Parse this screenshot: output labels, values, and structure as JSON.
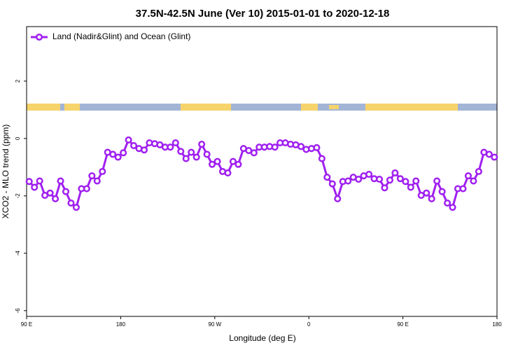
{
  "chart_data": {
    "type": "line",
    "title": "37.5N-42.5N June (Ver 10)   2015-01-01 to 2020-12-18",
    "x_label": "Longitude (deg E)",
    "y_label": "XCO2 - MLO trend (ppm)",
    "xlim": [
      90,
      540
    ],
    "ylim": [
      -6.2,
      3.9
    ],
    "xticks": [
      {
        "value": 90,
        "label": "90 E"
      },
      {
        "value": 180,
        "label": "180"
      },
      {
        "value": 270,
        "label": "90 W"
      },
      {
        "value": 360,
        "label": "0"
      },
      {
        "value": 450,
        "label": "90 E"
      },
      {
        "value": 540,
        "label": "180"
      }
    ],
    "yticks": [
      -6,
      -4,
      -2,
      0,
      2
    ],
    "legend": "top-left",
    "x": [
      92.5,
      97.5,
      102.5,
      107.5,
      112.5,
      117.5,
      122.5,
      127.5,
      132.5,
      137.5,
      142.5,
      147.5,
      152.5,
      157.5,
      162.5,
      167.5,
      172.5,
      177.5,
      182.5,
      187.5,
      192.5,
      197.5,
      202.5,
      207.5,
      212.5,
      217.5,
      222.5,
      227.5,
      232.5,
      237.5,
      242.5,
      247.5,
      252.5,
      257.5,
      262.5,
      267.5,
      272.5,
      277.5,
      282.5,
      287.5,
      292.5,
      297.5,
      302.5,
      307.5,
      312.5,
      317.5,
      322.5,
      327.5,
      332.5,
      337.5,
      342.5,
      347.5,
      352.5,
      357.5,
      362.5,
      367.5,
      372.5,
      377.5,
      382.5,
      387.5,
      392.5,
      397.5,
      402.5,
      407.5,
      412.5,
      417.5,
      422.5,
      427.5,
      432.5,
      437.5,
      442.5,
      447.5,
      452.5,
      457.5,
      462.5,
      467.5,
      472.5,
      477.5,
      482.5,
      487.5,
      492.5,
      497.5,
      502.5,
      507.5,
      512.5,
      517.5,
      522.5,
      527.5,
      532.5,
      537.5
    ],
    "series": [
      {
        "name": "Land (Nadir&Glint) and Ocean (Glint)",
        "color": "#a020f0",
        "values": [
          -1.5,
          -1.7,
          -1.48,
          -1.98,
          -1.9,
          -2.1,
          -1.48,
          -1.85,
          -2.25,
          -2.4,
          -1.75,
          -1.75,
          -1.3,
          -1.48,
          -1.15,
          -0.48,
          -0.55,
          -0.65,
          -0.5,
          -0.05,
          -0.25,
          -0.35,
          -0.4,
          -0.15,
          -0.18,
          -0.22,
          -0.3,
          -0.3,
          -0.15,
          -0.45,
          -0.7,
          -0.48,
          -0.65,
          -0.2,
          -0.55,
          -0.9,
          -0.8,
          -1.15,
          -1.2,
          -0.8,
          -0.9,
          -0.35,
          -0.42,
          -0.5,
          -0.3,
          -0.3,
          -0.28,
          -0.3,
          -0.15,
          -0.15,
          -0.2,
          -0.22,
          -0.28,
          -0.38,
          -0.35,
          -0.32,
          -0.7,
          -1.35,
          -1.58,
          -2.1,
          -1.5,
          -1.48,
          -1.35,
          -1.42,
          -1.3,
          -1.25,
          -1.4,
          -1.42,
          -1.72,
          -1.45,
          -1.2,
          -1.4,
          -1.5,
          -1.7,
          -1.48,
          -1.98,
          -1.9,
          -2.1,
          -1.48,
          -1.85,
          -2.25,
          -2.4,
          -1.75,
          -1.75,
          -1.3,
          -1.48,
          -1.15,
          -0.48,
          -0.55,
          -0.65
        ]
      }
    ]
  }
}
